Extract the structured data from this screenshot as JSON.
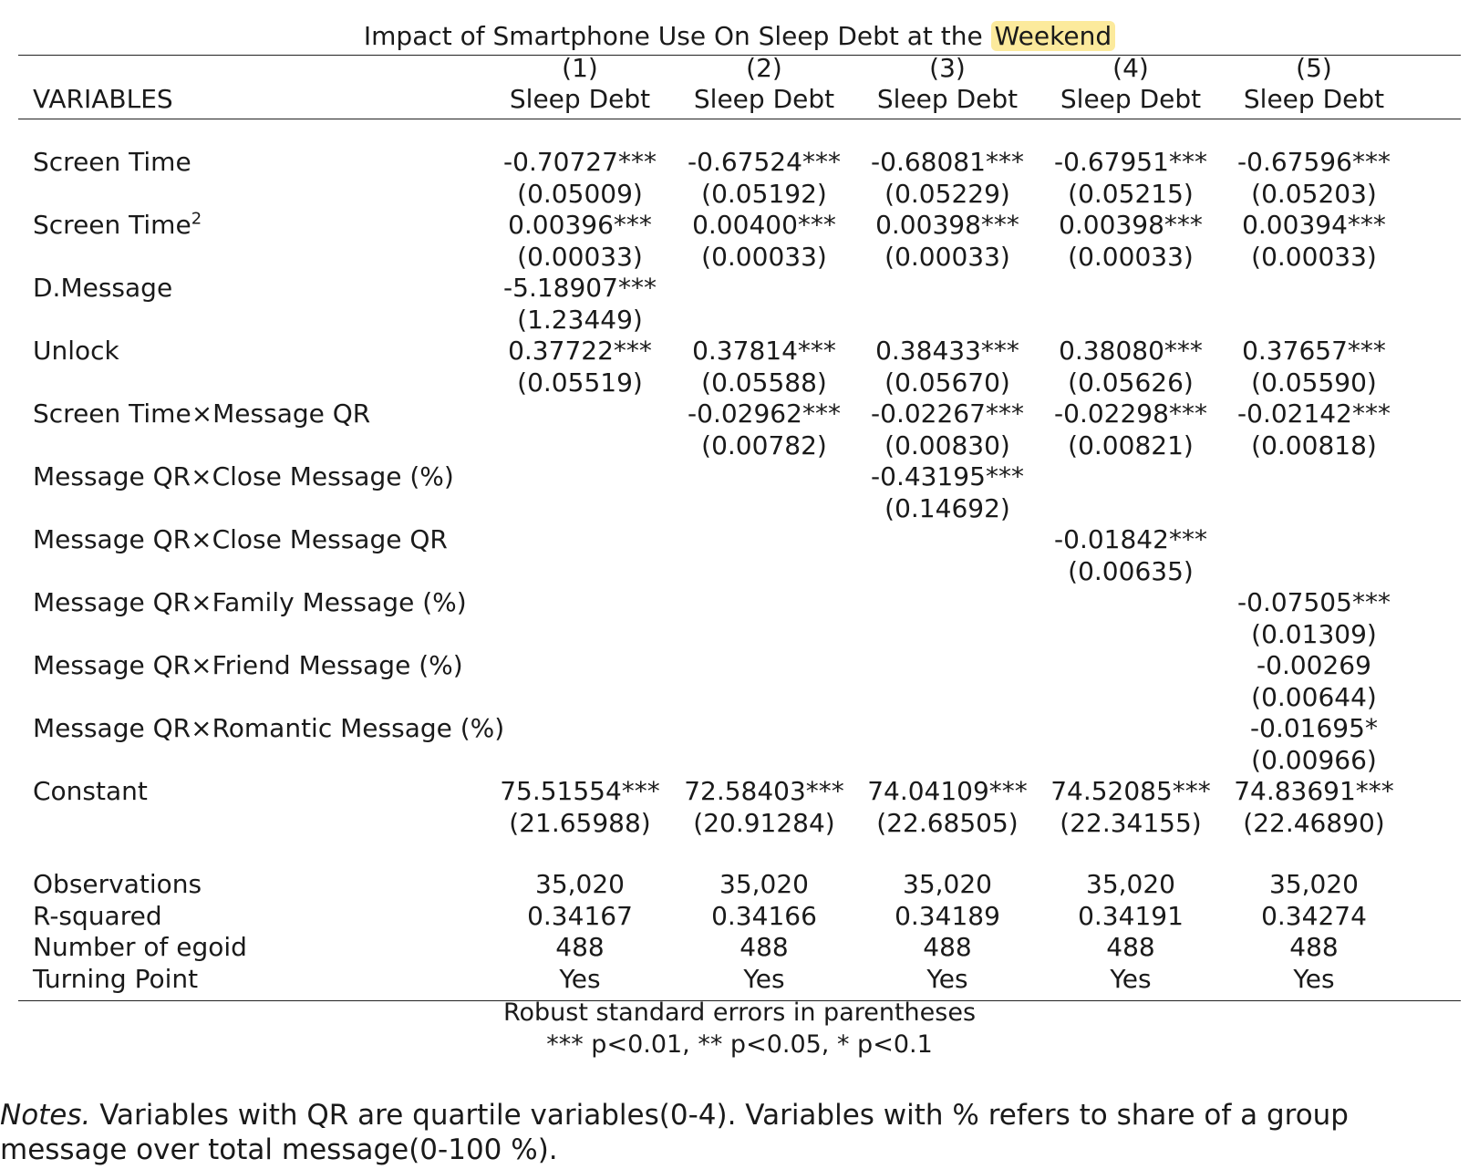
{
  "title_prefix": "Impact of Smartphone Use On Sleep Debt at the ",
  "title_highlight": "Weekend",
  "header": {
    "variables_label": "VARIABLES",
    "col_numbers": [
      "(1)",
      "(2)",
      "(3)",
      "(4)",
      "(5)"
    ],
    "col_names": [
      "Sleep Debt",
      "Sleep Debt",
      "Sleep Debt",
      "Sleep Debt",
      "Sleep Debt"
    ]
  },
  "rows": [
    {
      "label": "Screen Time",
      "coef": [
        "-0.70727***",
        "-0.67524***",
        "-0.68081***",
        "-0.67951***",
        "-0.67596***"
      ],
      "se": [
        "(0.05009)",
        "(0.05192)",
        "(0.05229)",
        "(0.05215)",
        "(0.05203)"
      ]
    },
    {
      "label": "Screen Time",
      "label_sup": "2",
      "coef": [
        "0.00396***",
        "0.00400***",
        "0.00398***",
        "0.00398***",
        "0.00394***"
      ],
      "se": [
        "(0.00033)",
        "(0.00033)",
        "(0.00033)",
        "(0.00033)",
        "(0.00033)"
      ]
    },
    {
      "label": "D.Message",
      "coef": [
        "-5.18907***",
        "",
        "",
        "",
        ""
      ],
      "se": [
        "(1.23449)",
        "",
        "",
        "",
        ""
      ]
    },
    {
      "label": "Unlock",
      "coef": [
        "0.37722***",
        "0.37814***",
        "0.38433***",
        "0.38080***",
        "0.37657***"
      ],
      "se": [
        "(0.05519)",
        "(0.05588)",
        "(0.05670)",
        "(0.05626)",
        "(0.05590)"
      ]
    },
    {
      "label": "Screen Time×Message QR",
      "coef": [
        "",
        "-0.02962***",
        "-0.02267***",
        "-0.02298***",
        "-0.02142***"
      ],
      "se": [
        "",
        "(0.00782)",
        "(0.00830)",
        "(0.00821)",
        "(0.00818)"
      ]
    },
    {
      "label": "Message QR×Close Message (%)",
      "coef": [
        "",
        "",
        "-0.43195***",
        "",
        ""
      ],
      "se": [
        "",
        "",
        "(0.14692)",
        "",
        ""
      ]
    },
    {
      "label": "Message QR×Close Message QR",
      "coef": [
        "",
        "",
        "",
        "-0.01842***",
        ""
      ],
      "se": [
        "",
        "",
        "",
        "(0.00635)",
        ""
      ]
    },
    {
      "label": "Message QR×Family Message (%)",
      "coef": [
        "",
        "",
        "",
        "",
        "-0.07505***"
      ],
      "se": [
        "",
        "",
        "",
        "",
        "(0.01309)"
      ]
    },
    {
      "label": "Message QR×Friend Message (%)",
      "coef": [
        "",
        "",
        "",
        "",
        "-0.00269"
      ],
      "se": [
        "",
        "",
        "",
        "",
        "(0.00644)"
      ]
    },
    {
      "label": "Message QR×Romantic Message (%)",
      "coef": [
        "",
        "",
        "",
        "",
        "-0.01695*"
      ],
      "se": [
        "",
        "",
        "",
        "",
        "(0.00966)"
      ]
    },
    {
      "label": "Constant",
      "coef": [
        "75.51554***",
        "72.58403***",
        "74.04109***",
        "74.52085***",
        "74.83691***"
      ],
      "se": [
        "(21.65988)",
        "(20.91284)",
        "(22.68505)",
        "(22.34155)",
        "(22.46890)"
      ]
    }
  ],
  "stats": [
    {
      "label": "Observations",
      "values": [
        "35,020",
        "35,020",
        "35,020",
        "35,020",
        "35,020"
      ]
    },
    {
      "label": "R-squared",
      "values": [
        "0.34167",
        "0.34166",
        "0.34189",
        "0.34191",
        "0.34274"
      ]
    },
    {
      "label": "Number of egoid",
      "values": [
        "488",
        "488",
        "488",
        "488",
        "488"
      ]
    },
    {
      "label": "Turning Point",
      "values": [
        "Yes",
        "Yes",
        "Yes",
        "Yes",
        "Yes"
      ]
    }
  ],
  "footer": {
    "line1": "Robust standard errors in parentheses",
    "line2": "*** p<0.01, ** p<0.05, * p<0.1"
  },
  "notes": {
    "lead": "Notes.",
    "text": " Variables with QR are quartile variables(0-4). Variables with % refers to share of a group message over total message(0-100 %)."
  },
  "colors": {
    "highlight": "#fcea9c",
    "text": "#1a1a1a"
  }
}
